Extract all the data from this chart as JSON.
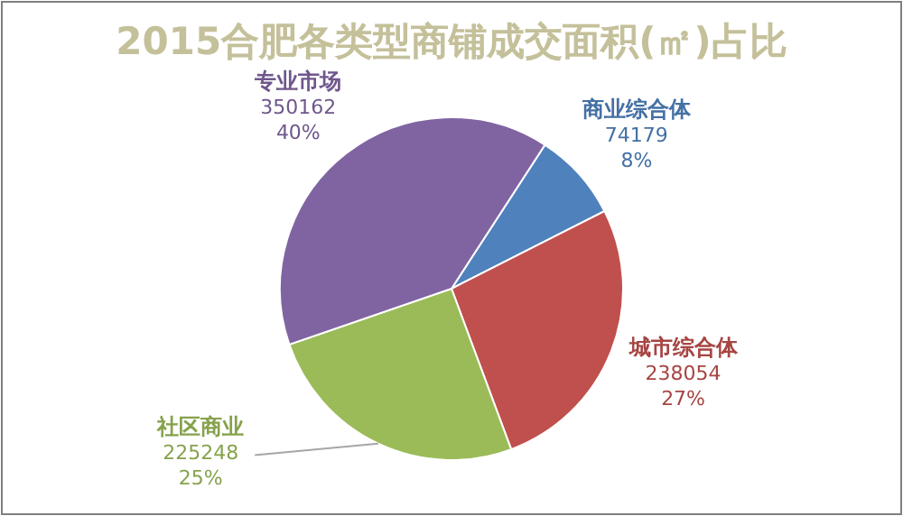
{
  "chart_data": {
    "type": "pie",
    "title": "2015合肥各类型商铺成交面积(㎡)占比",
    "categories": [
      "商业综合体",
      "城市综合体",
      "社区商业",
      "专业市场"
    ],
    "values": [
      74179,
      238054,
      225248,
      350162
    ],
    "colors": [
      "#4f81bd",
      "#c0504d",
      "#9bbb59",
      "#8064a2"
    ],
    "value_labels": [
      "74179\n8%",
      "238054\n27%",
      "225248\n25%",
      "350162\n40%"
    ]
  }
}
